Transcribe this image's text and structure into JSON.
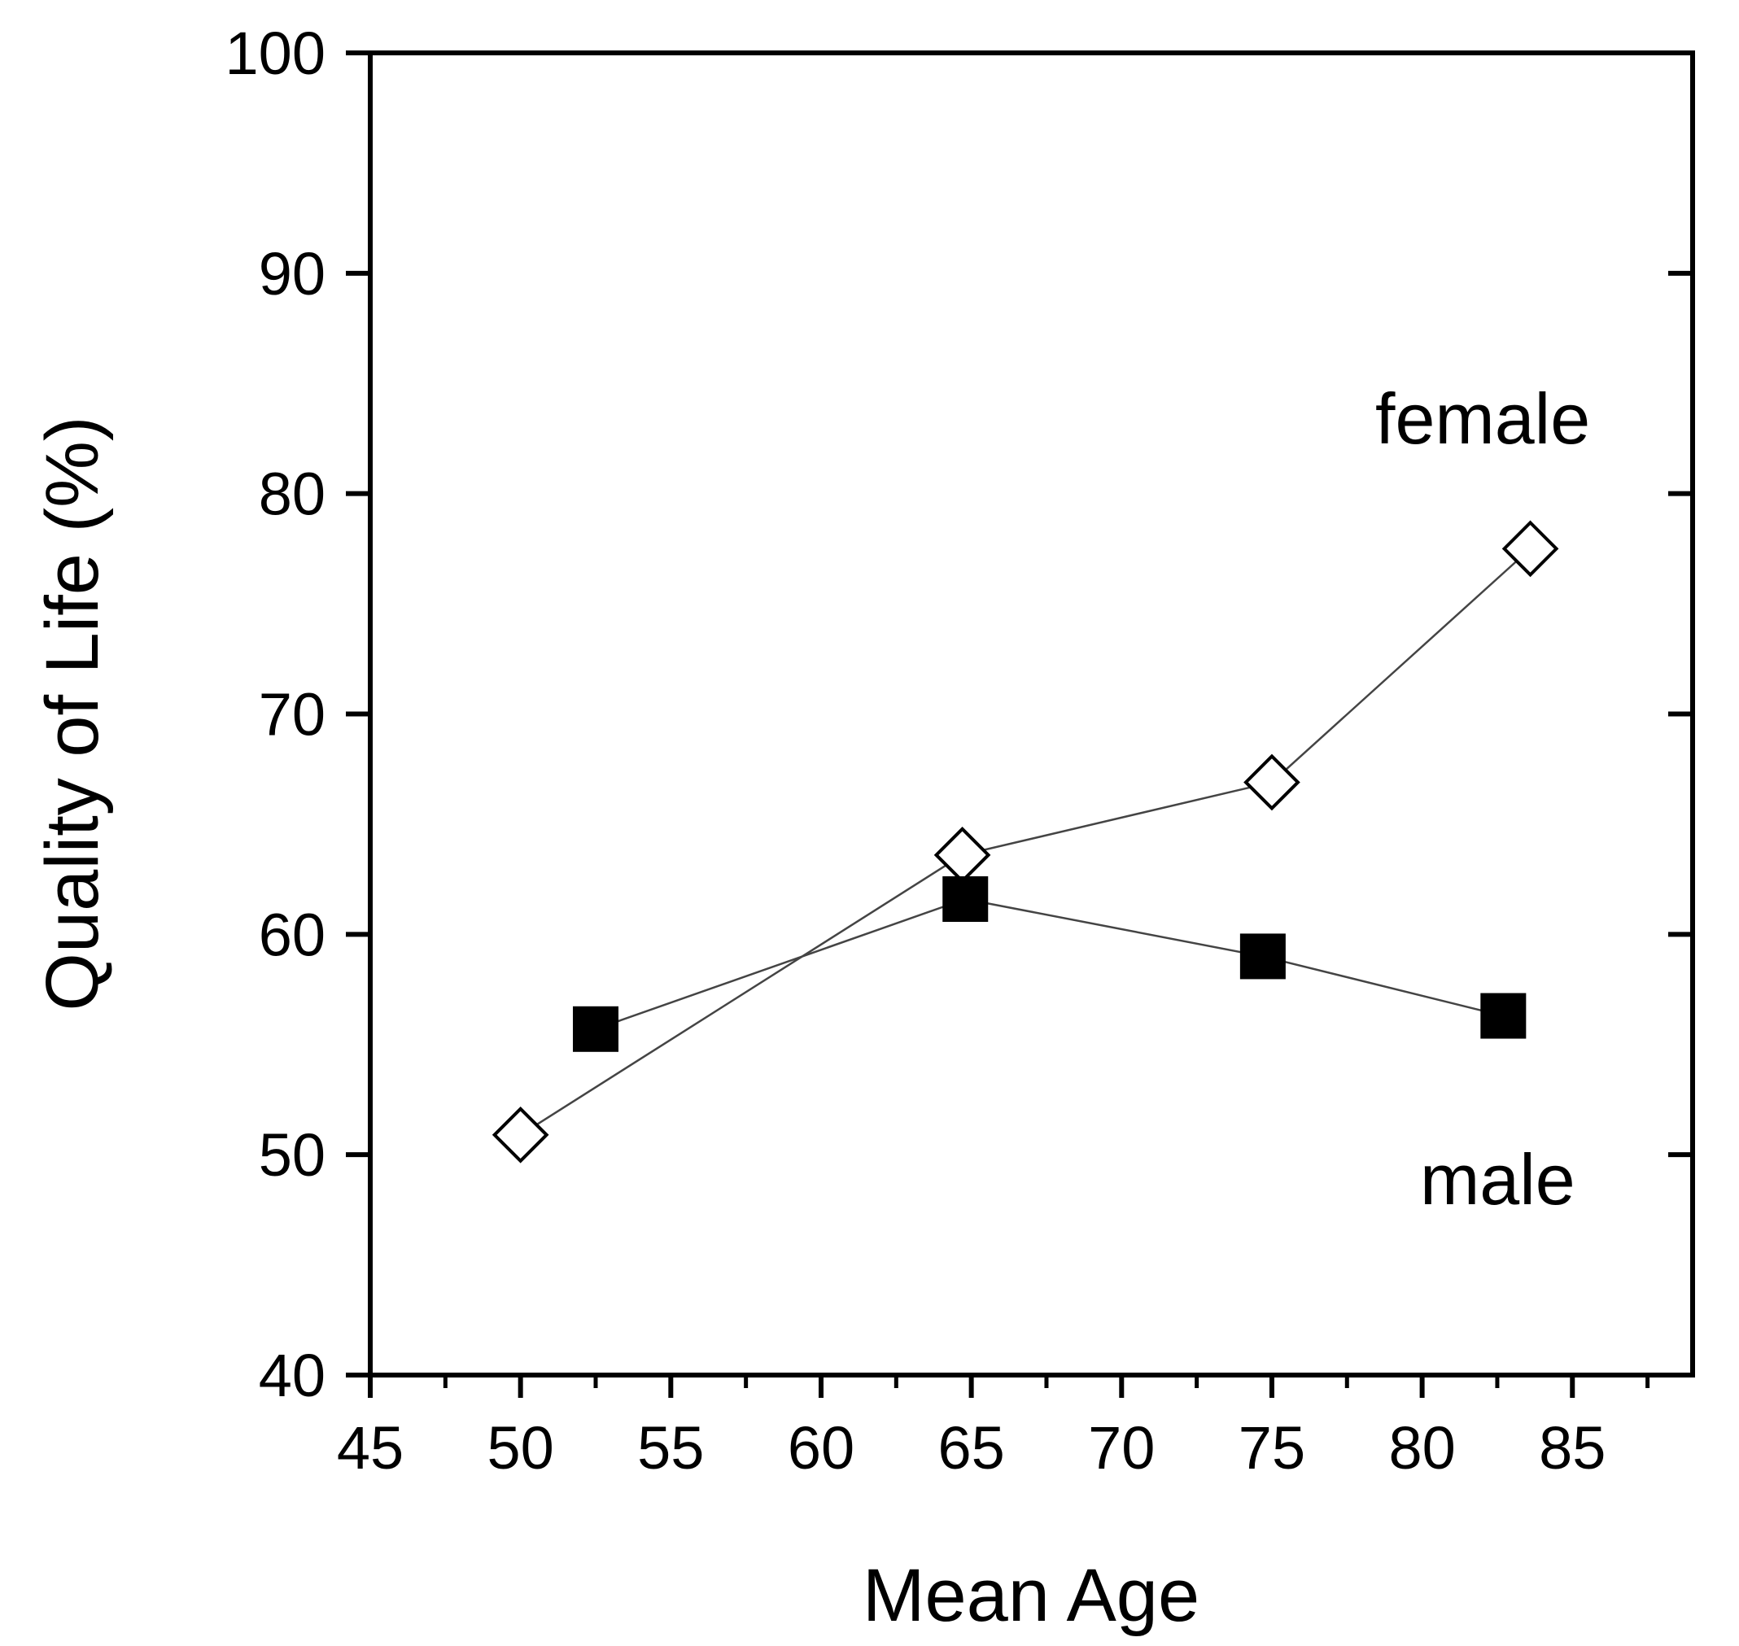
{
  "chart_data": {
    "type": "line",
    "title": "",
    "xlabel": "Mean Age",
    "ylabel": "Quality of Life (%)",
    "xlim": [
      45,
      89
    ],
    "ylim": [
      40,
      100
    ],
    "x_ticks": [
      45,
      50,
      55,
      60,
      65,
      70,
      75,
      80,
      85
    ],
    "y_ticks": [
      40,
      50,
      60,
      70,
      80,
      90,
      100
    ],
    "grid": false,
    "series": [
      {
        "name": "female",
        "marker": "open-diamond",
        "color": "#000000",
        "points": [
          {
            "x": 50.0,
            "y": 50.9
          },
          {
            "x": 64.7,
            "y": 63.6
          },
          {
            "x": 75.0,
            "y": 66.9
          },
          {
            "x": 83.6,
            "y": 77.5
          }
        ]
      },
      {
        "name": "male",
        "marker": "filled-square",
        "color": "#000000",
        "points": [
          {
            "x": 52.5,
            "y": 55.7
          },
          {
            "x": 64.8,
            "y": 61.6
          },
          {
            "x": 74.7,
            "y": 59.0
          },
          {
            "x": 82.7,
            "y": 56.3
          }
        ]
      }
    ]
  }
}
